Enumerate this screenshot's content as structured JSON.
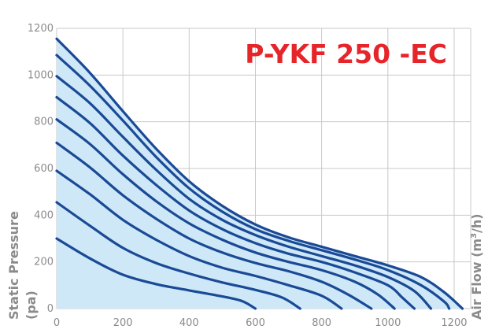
{
  "chart_data": {
    "type": "line",
    "title": "P-YKF 250 -EC",
    "ylabel_line1": "Static Pressure",
    "ylabel_line2": "(pa)",
    "xlabel_prefix": "Air Flow (m",
    "xlabel_sup": "3",
    "xlabel_suffix": "/h)",
    "xlim": [
      0,
      1250
    ],
    "ylim": [
      0,
      1200
    ],
    "x_ticks": [
      0,
      200,
      400,
      600,
      800,
      1000,
      1200
    ],
    "y_ticks": [
      0,
      200,
      400,
      600,
      800,
      1000,
      1200
    ],
    "x_tick_labels": [
      "0",
      "200",
      "400",
      "600",
      "800",
      "1000",
      "1200"
    ],
    "y_tick_labels": [
      "0",
      "200",
      "400",
      "600",
      "800",
      "1000",
      "1200"
    ],
    "grid": true,
    "line_color": "#1a4a96",
    "fill_color": "#cfe8f7",
    "series": [
      {
        "points": [
          [
            0,
            300
          ],
          [
            100,
            215
          ],
          [
            200,
            145
          ],
          [
            300,
            105
          ],
          [
            400,
            78
          ],
          [
            500,
            52
          ],
          [
            560,
            32
          ],
          [
            600,
            0
          ]
        ]
      },
      {
        "points": [
          [
            0,
            455
          ],
          [
            100,
            355
          ],
          [
            200,
            260
          ],
          [
            300,
            195
          ],
          [
            400,
            150
          ],
          [
            500,
            112
          ],
          [
            600,
            80
          ],
          [
            680,
            48
          ],
          [
            735,
            0
          ]
        ]
      },
      {
        "points": [
          [
            0,
            590
          ],
          [
            100,
            490
          ],
          [
            200,
            380
          ],
          [
            300,
            295
          ],
          [
            400,
            225
          ],
          [
            500,
            175
          ],
          [
            600,
            140
          ],
          [
            700,
            100
          ],
          [
            800,
            55
          ],
          [
            860,
            0
          ]
        ]
      },
      {
        "points": [
          [
            0,
            710
          ],
          [
            100,
            605
          ],
          [
            200,
            485
          ],
          [
            300,
            385
          ],
          [
            400,
            300
          ],
          [
            500,
            240
          ],
          [
            600,
            195
          ],
          [
            700,
            160
          ],
          [
            800,
            115
          ],
          [
            880,
            60
          ],
          [
            950,
            0
          ]
        ]
      },
      {
        "points": [
          [
            0,
            810
          ],
          [
            100,
            705
          ],
          [
            200,
            575
          ],
          [
            300,
            460
          ],
          [
            400,
            365
          ],
          [
            500,
            295
          ],
          [
            600,
            240
          ],
          [
            700,
            200
          ],
          [
            800,
            165
          ],
          [
            900,
            115
          ],
          [
            970,
            60
          ],
          [
            1020,
            0
          ]
        ]
      },
      {
        "points": [
          [
            0,
            905
          ],
          [
            100,
            795
          ],
          [
            200,
            655
          ],
          [
            300,
            530
          ],
          [
            400,
            420
          ],
          [
            500,
            340
          ],
          [
            600,
            280
          ],
          [
            700,
            235
          ],
          [
            800,
            200
          ],
          [
            900,
            155
          ],
          [
            1000,
            100
          ],
          [
            1045,
            45
          ],
          [
            1080,
            0
          ]
        ]
      },
      {
        "points": [
          [
            0,
            995
          ],
          [
            100,
            880
          ],
          [
            200,
            735
          ],
          [
            300,
            595
          ],
          [
            400,
            470
          ],
          [
            500,
            380
          ],
          [
            600,
            315
          ],
          [
            700,
            265
          ],
          [
            800,
            225
          ],
          [
            900,
            185
          ],
          [
            1000,
            135
          ],
          [
            1080,
            75
          ],
          [
            1130,
            0
          ]
        ]
      },
      {
        "points": [
          [
            0,
            1085
          ],
          [
            100,
            955
          ],
          [
            200,
            805
          ],
          [
            300,
            650
          ],
          [
            400,
            515
          ],
          [
            500,
            415
          ],
          [
            600,
            340
          ],
          [
            700,
            290
          ],
          [
            800,
            250
          ],
          [
            900,
            210
          ],
          [
            1000,
            165
          ],
          [
            1100,
            100
          ],
          [
            1170,
            30
          ],
          [
            1185,
            0
          ]
        ]
      },
      {
        "points": [
          [
            0,
            1155
          ],
          [
            100,
            1010
          ],
          [
            200,
            845
          ],
          [
            300,
            685
          ],
          [
            400,
            545
          ],
          [
            500,
            440
          ],
          [
            600,
            360
          ],
          [
            700,
            305
          ],
          [
            800,
            265
          ],
          [
            900,
            225
          ],
          [
            1000,
            185
          ],
          [
            1100,
            135
          ],
          [
            1170,
            70
          ],
          [
            1225,
            0
          ]
        ]
      }
    ]
  }
}
